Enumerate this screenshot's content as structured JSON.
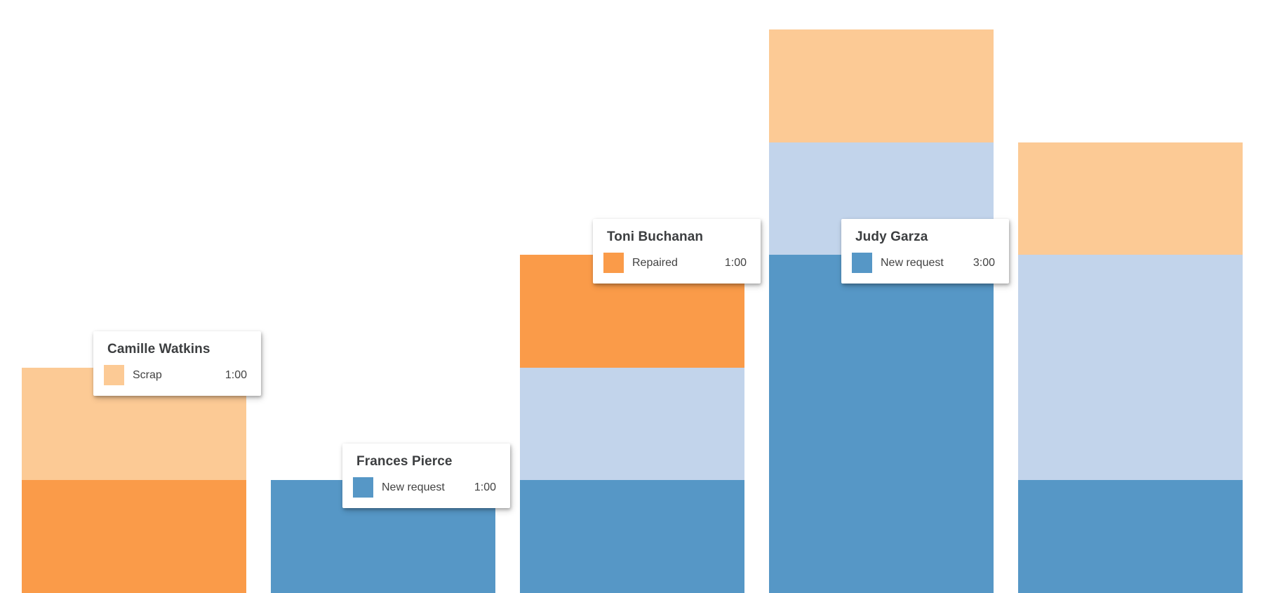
{
  "page": {
    "background_color": "#ffffff"
  },
  "series_colors": {
    "new_request": "#5697C6",
    "unlabeled_light_blue": "#C2D4EB",
    "repaired": "#FA9B49",
    "scrap": "#FCCA95"
  },
  "chart_data": {
    "type": "bar",
    "stacked": true,
    "orientation": "vertical-columns",
    "value_unit": "hours (shown as h:mm in tooltips)",
    "axes_visible": false,
    "gridlines_visible": false,
    "legend_visible": false,
    "series": [
      {
        "key": "scrap",
        "label": "Scrap",
        "color": "#FCCA95"
      },
      {
        "key": "repaired",
        "label": "Repaired",
        "color": "#FA9B49"
      },
      {
        "key": "unlabeled_light_blue",
        "label": "",
        "color": "#C2D4EB"
      },
      {
        "key": "new_request",
        "label": "New request",
        "color": "#5697C6"
      }
    ],
    "bars": [
      {
        "index": 0,
        "person": "Camille Watkins",
        "segments_top_to_bottom": [
          {
            "series": "scrap",
            "hours": 1
          },
          {
            "series": "repaired",
            "hours": 1
          }
        ]
      },
      {
        "index": 1,
        "person": "Frances Pierce",
        "segments_top_to_bottom": [
          {
            "series": "new_request",
            "hours": 1
          }
        ]
      },
      {
        "index": 2,
        "person": "Toni Buchanan",
        "segments_top_to_bottom": [
          {
            "series": "repaired",
            "hours": 1
          },
          {
            "series": "unlabeled_light_blue",
            "hours": 1
          },
          {
            "series": "new_request",
            "hours": 1
          }
        ]
      },
      {
        "index": 3,
        "person": "Judy Garza",
        "segments_top_to_bottom": [
          {
            "series": "scrap",
            "hours": 1
          },
          {
            "series": "unlabeled_light_blue",
            "hours": 1
          },
          {
            "series": "new_request",
            "hours": 3
          }
        ]
      },
      {
        "index": 4,
        "person": "",
        "segments_top_to_bottom": [
          {
            "series": "scrap",
            "hours": 1
          },
          {
            "series": "unlabeled_light_blue",
            "hours": 2
          },
          {
            "series": "new_request",
            "hours": 1
          }
        ]
      }
    ]
  },
  "tooltips": [
    {
      "name": "Camille Watkins",
      "series_key": "scrap",
      "series_label": "Scrap",
      "value": "1:00"
    },
    {
      "name": "Frances Pierce",
      "series_key": "new_request",
      "series_label": "New request",
      "value": "1:00"
    },
    {
      "name": "Toni Buchanan",
      "series_key": "repaired",
      "series_label": "Repaired",
      "value": "1:00"
    },
    {
      "name": "Judy Garza",
      "series_key": "new_request",
      "series_label": "New request",
      "value": "3:00"
    }
  ]
}
